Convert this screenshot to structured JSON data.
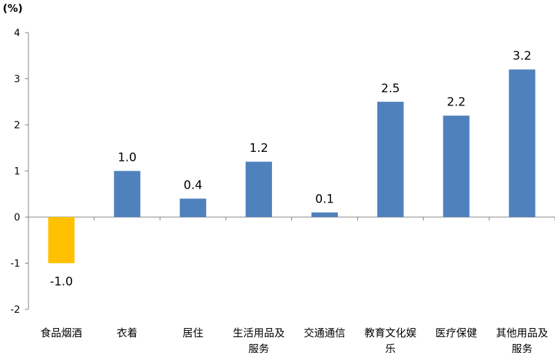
{
  "chart_data": {
    "type": "bar",
    "unit_label": "(%)",
    "categories": [
      [
        "食品烟酒"
      ],
      [
        "衣着"
      ],
      [
        "居住"
      ],
      [
        "生活用品及",
        "服务"
      ],
      [
        "交通通信"
      ],
      [
        "教育文化娱",
        "乐"
      ],
      [
        "医疗保健"
      ],
      [
        "其他用品及",
        "服务"
      ]
    ],
    "values": [
      -1.0,
      1.0,
      0.4,
      1.2,
      0.1,
      2.5,
      2.2,
      3.2
    ],
    "value_labels": [
      "-1.0",
      "1.0",
      "0.4",
      "1.2",
      "0.1",
      "2.5",
      "2.2",
      "3.2"
    ],
    "y_ticks": [
      -2,
      -1,
      0,
      1,
      2,
      3,
      4
    ],
    "y_tick_labels": [
      "-2",
      "-1",
      "0",
      "1",
      "2",
      "3",
      "4"
    ],
    "ylim": [
      -2,
      4
    ],
    "grid": false,
    "colors": {
      "positive": "#4f81bd",
      "negative": "#ffc000",
      "axis": "#808080"
    }
  }
}
